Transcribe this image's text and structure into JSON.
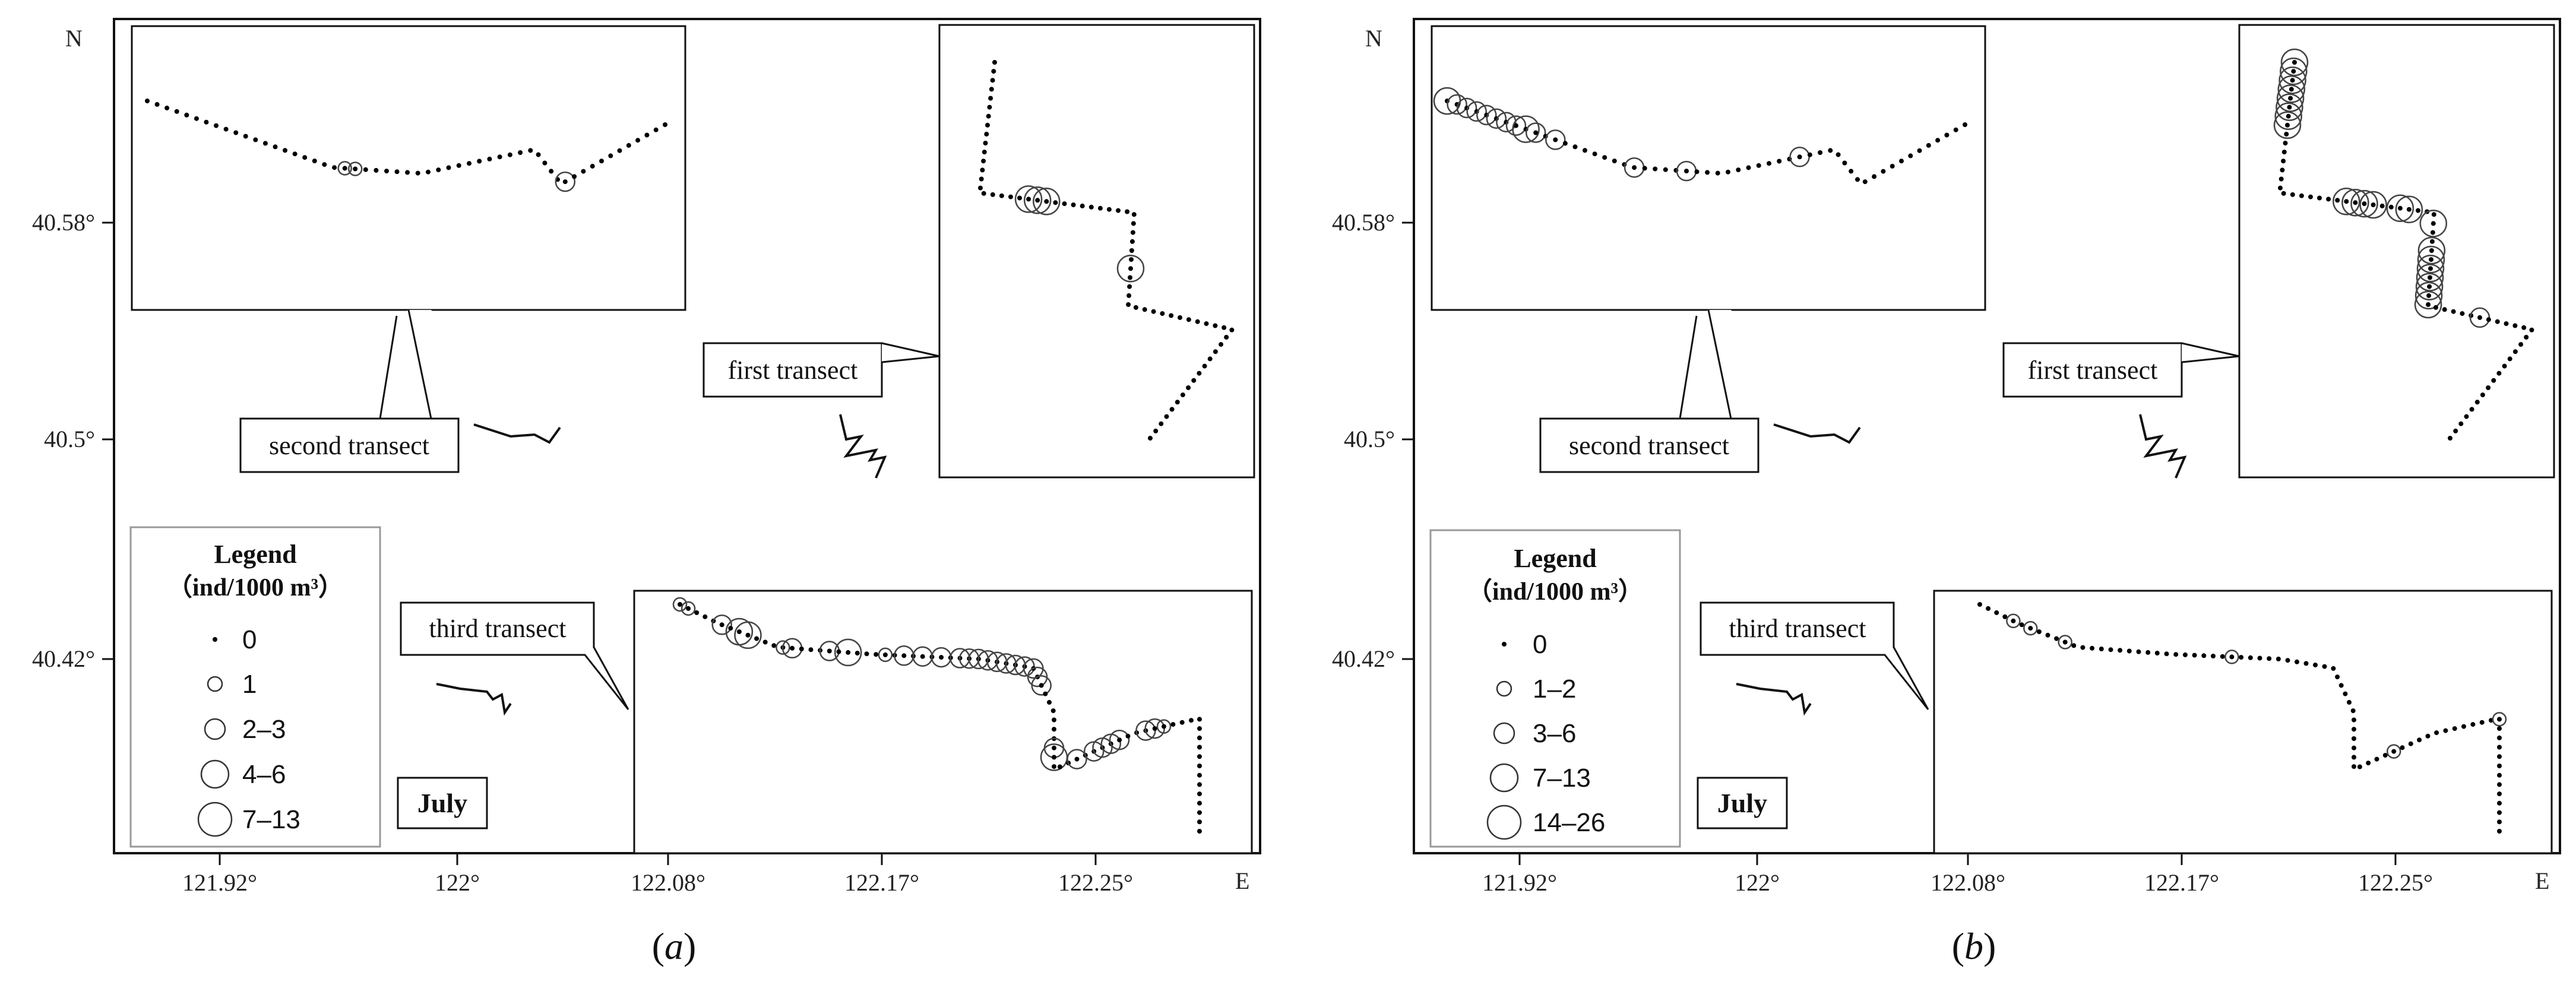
{
  "compass": {
    "north": "N",
    "east": "E"
  },
  "axis": {
    "x_ticks": [
      "121.92°",
      "122°",
      "122.08°",
      "122.17°",
      "122.25°"
    ],
    "y_ticks": [
      "40.58°",
      "40.5°",
      "40.42°"
    ]
  },
  "transect_labels": {
    "first": "first transect",
    "second": "second transect",
    "third": "third transect"
  },
  "panels": [
    {
      "label": "(a)",
      "label_letter": "a",
      "month": "July",
      "legend": {
        "title": "Legend",
        "unit": "（ind/1000 m³）",
        "classes": [
          "0",
          "1",
          "2–3",
          "4–6",
          "7–13"
        ]
      }
    },
    {
      "label": "(b)",
      "label_letter": "b",
      "month": "July",
      "legend": {
        "title": "Legend",
        "unit": "（ind/1000 m³）",
        "classes": [
          "0",
          "1–2",
          "3–6",
          "7–13",
          "14–26"
        ]
      }
    }
  ],
  "colors": {
    "frame": "#111111",
    "marker": "#000000",
    "circle": "#333333",
    "legend_frame": "#999999"
  }
}
